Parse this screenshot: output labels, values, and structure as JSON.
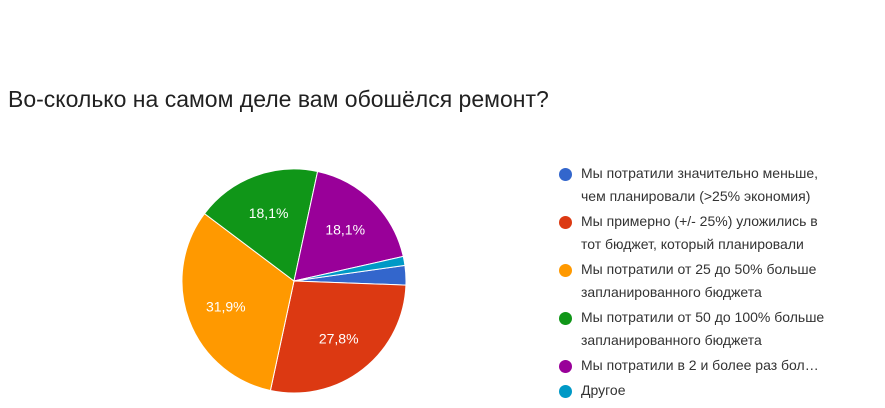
{
  "chart_data": {
    "type": "pie",
    "title": "Во-сколько на самом деле вам обошёлся ремонт?",
    "slices": [
      {
        "label": "Мы потратили значительно меньше, чем планировали (>25% экономия)",
        "value": 2.8,
        "color": "#3366cc",
        "data_label": ""
      },
      {
        "label": "Мы примерно (+/- 25%) уложились в тот бюджет, который планировали",
        "value": 27.8,
        "color": "#dc3912",
        "data_label": "27,8%"
      },
      {
        "label": "Мы потратили от 25 до 50% больше запланированного бюджета",
        "value": 31.9,
        "color": "#ff9900",
        "data_label": "31,9%"
      },
      {
        "label": "Мы потратили от 50 до 100% больше запланированного бюджета",
        "value": 18.1,
        "color": "#109618",
        "data_label": "18,1%"
      },
      {
        "label": "Мы потратили в 2 и более раз бол…",
        "value": 18.1,
        "color": "#990099",
        "data_label": "18,1%"
      },
      {
        "label": "Другое",
        "value": 1.3,
        "color": "#0099c6",
        "data_label": ""
      }
    ],
    "legend_position": "right"
  }
}
